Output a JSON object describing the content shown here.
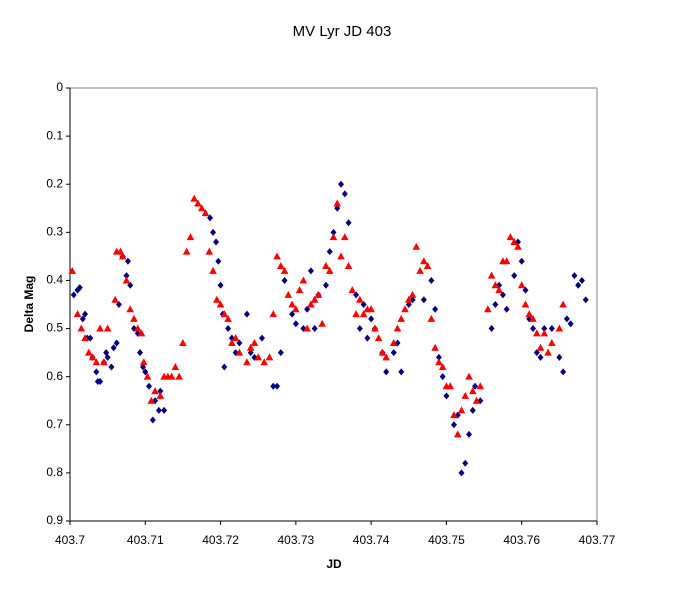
{
  "chart_data": {
    "type": "scatter",
    "title": "MV Lyr JD 403",
    "x_label": "JD",
    "y_label": "Delta Mag",
    "xlim": [
      403.7,
      403.77
    ],
    "xticks": [
      403.7,
      403.71,
      403.72,
      403.73,
      403.74,
      403.75,
      403.76,
      403.77
    ],
    "ylim": [
      0,
      0.9
    ],
    "yticks": [
      0,
      0.1,
      0.2,
      0.3,
      0.4,
      0.5,
      0.6,
      0.7,
      0.8,
      0.9
    ],
    "y_inverted": true,
    "grid": false,
    "series": [
      {
        "color": "#000080",
        "marker": "diamond",
        "x": [
          403.7005,
          403.701,
          403.7013,
          403.7017,
          403.702,
          403.7023,
          403.7027,
          403.703,
          403.7035,
          403.7037,
          403.704,
          403.7045,
          403.7048,
          403.705,
          403.7055,
          403.7058,
          403.7062,
          403.7065,
          403.707,
          403.7075,
          403.7077,
          403.708,
          403.7085,
          403.709,
          403.7093,
          403.7097,
          403.71,
          403.7105,
          403.711,
          403.7113,
          403.7118,
          403.712,
          403.7125,
          403.7186,
          403.719,
          403.7194,
          403.7197,
          403.72,
          403.7203,
          403.7205,
          403.721,
          403.7215,
          403.722,
          403.7225,
          403.7235,
          403.724,
          403.7245,
          403.7255,
          403.727,
          403.7275,
          403.728,
          403.7285,
          403.7295,
          403.73,
          403.731,
          403.7315,
          403.732,
          403.7325,
          403.733,
          403.734,
          403.7345,
          403.735,
          403.7355,
          403.736,
          403.7365,
          403.737,
          403.738,
          403.7385,
          403.739,
          403.7395,
          403.74,
          403.7405,
          403.7415,
          403.742,
          403.743,
          403.7435,
          403.744,
          403.745,
          403.7455,
          403.747,
          403.748,
          403.7485,
          403.749,
          403.7495,
          403.75,
          403.751,
          403.7515,
          403.752,
          403.7525,
          403.753,
          403.7535,
          403.7538,
          403.7545,
          403.756,
          403.7565,
          403.757,
          403.7575,
          403.758,
          403.759,
          403.7595,
          403.76,
          403.7605,
          403.761,
          403.7615,
          403.762,
          403.7625,
          403.763,
          403.764,
          403.765,
          403.7655,
          403.766,
          403.7665,
          403.767,
          403.7675,
          403.768,
          403.7685
        ],
        "values": [
          0.43,
          0.42,
          0.415,
          0.48,
          0.47,
          0.52,
          0.52,
          0.56,
          0.59,
          0.61,
          0.61,
          0.57,
          0.55,
          0.56,
          0.58,
          0.54,
          0.53,
          0.45,
          0.35,
          0.39,
          0.36,
          0.41,
          0.5,
          0.51,
          0.55,
          0.58,
          0.59,
          0.62,
          0.69,
          0.65,
          0.67,
          0.63,
          0.67,
          0.27,
          0.3,
          0.32,
          0.36,
          0.41,
          0.47,
          0.58,
          0.5,
          0.52,
          0.55,
          0.53,
          0.47,
          0.55,
          0.56,
          0.52,
          0.62,
          0.62,
          0.55,
          0.4,
          0.47,
          0.49,
          0.5,
          0.46,
          0.38,
          0.5,
          0.43,
          0.41,
          0.34,
          0.3,
          0.25,
          0.2,
          0.22,
          0.28,
          0.43,
          0.5,
          0.45,
          0.52,
          0.48,
          0.5,
          0.55,
          0.59,
          0.55,
          0.53,
          0.59,
          0.45,
          0.44,
          0.44,
          0.4,
          0.46,
          0.56,
          0.6,
          0.64,
          0.7,
          0.68,
          0.8,
          0.78,
          0.72,
          0.67,
          0.62,
          0.65,
          0.5,
          0.45,
          0.41,
          0.43,
          0.46,
          0.39,
          0.32,
          0.36,
          0.42,
          0.48,
          0.5,
          0.55,
          0.56,
          0.5,
          0.5,
          0.56,
          0.59,
          0.48,
          0.49,
          0.39,
          0.41,
          0.4,
          0.44
        ]
      },
      {
        "color": "#ff0000",
        "marker": "triangle",
        "x": [
          403.7003,
          403.701,
          403.7015,
          403.702,
          403.7025,
          403.703,
          403.7035,
          403.704,
          403.7045,
          403.705,
          403.706,
          403.7062,
          403.7067,
          403.707,
          403.7075,
          403.708,
          403.7085,
          403.709,
          403.7095,
          403.7098,
          403.7103,
          403.7108,
          403.7113,
          403.712,
          403.7125,
          403.713,
          403.7135,
          403.714,
          403.7145,
          403.715,
          403.7155,
          403.716,
          403.7165,
          403.717,
          403.7175,
          403.718,
          403.7185,
          403.719,
          403.7195,
          403.72,
          403.7205,
          403.721,
          403.7215,
          403.722,
          403.7225,
          403.7235,
          403.724,
          403.7245,
          403.725,
          403.7258,
          403.7265,
          403.727,
          403.7275,
          403.728,
          403.7285,
          403.729,
          403.7295,
          403.73,
          403.7305,
          403.731,
          403.7315,
          403.732,
          403.7325,
          403.733,
          403.7335,
          403.734,
          403.7345,
          403.735,
          403.7355,
          403.736,
          403.7365,
          403.737,
          403.7375,
          403.738,
          403.7385,
          403.739,
          403.7395,
          403.74,
          403.7405,
          403.741,
          403.7415,
          403.742,
          403.743,
          403.7435,
          403.744,
          403.7445,
          403.745,
          403.7455,
          403.746,
          403.7465,
          403.747,
          403.7475,
          403.748,
          403.7485,
          403.749,
          403.7495,
          403.75,
          403.7505,
          403.751,
          403.7515,
          403.752,
          403.7525,
          403.753,
          403.7535,
          403.754,
          403.7545,
          403.7555,
          403.756,
          403.7565,
          403.757,
          403.7575,
          403.758,
          403.7585,
          403.759,
          403.7595,
          403.76,
          403.7605,
          403.761,
          403.7615,
          403.762,
          403.7625,
          403.763,
          403.7635,
          403.764,
          403.765,
          403.7655
        ],
        "values": [
          0.38,
          0.47,
          0.5,
          0.52,
          0.55,
          0.56,
          0.57,
          0.5,
          0.57,
          0.5,
          0.44,
          0.34,
          0.34,
          0.35,
          0.4,
          0.46,
          0.48,
          0.5,
          0.51,
          0.57,
          0.6,
          0.65,
          0.63,
          0.64,
          0.6,
          0.6,
          0.6,
          0.58,
          0.6,
          0.53,
          0.34,
          0.31,
          0.23,
          0.24,
          0.25,
          0.26,
          0.34,
          0.38,
          0.44,
          0.45,
          0.47,
          0.48,
          0.53,
          0.52,
          0.55,
          0.57,
          0.54,
          0.53,
          0.56,
          0.57,
          0.56,
          0.47,
          0.35,
          0.37,
          0.38,
          0.43,
          0.45,
          0.46,
          0.42,
          0.4,
          0.5,
          0.45,
          0.44,
          0.43,
          0.49,
          0.37,
          0.38,
          0.31,
          0.24,
          0.35,
          0.31,
          0.37,
          0.42,
          0.47,
          0.44,
          0.47,
          0.46,
          0.46,
          0.5,
          0.52,
          0.55,
          0.56,
          0.53,
          0.5,
          0.48,
          0.46,
          0.44,
          0.43,
          0.33,
          0.38,
          0.36,
          0.37,
          0.48,
          0.54,
          0.57,
          0.58,
          0.62,
          0.62,
          0.68,
          0.72,
          0.67,
          0.64,
          0.6,
          0.63,
          0.65,
          0.62,
          0.46,
          0.39,
          0.41,
          0.42,
          0.36,
          0.36,
          0.31,
          0.32,
          0.33,
          0.41,
          0.45,
          0.47,
          0.48,
          0.51,
          0.54,
          0.51,
          0.55,
          0.53,
          0.5,
          0.45
        ]
      }
    ]
  }
}
